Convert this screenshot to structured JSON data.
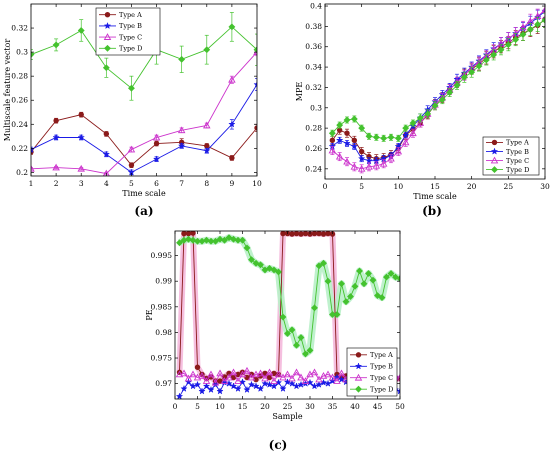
{
  "colors": {
    "A": "#8B1A1A",
    "B": "#1A1AE6",
    "C": "#CC33CC",
    "D": "#44C22E",
    "ribbon_pink": "#F4B8DC",
    "ribbon_green": "#B8F0C8",
    "axis": "#000000"
  },
  "chart_data": [
    {
      "id": "a",
      "type": "line",
      "caption": "(a)",
      "xlabel": "Time scale",
      "ylabel": "Multiscale feature vector",
      "xlim": [
        1,
        10
      ],
      "ylim": [
        0.197,
        0.34
      ],
      "xticks": [
        1,
        2,
        3,
        4,
        5,
        6,
        7,
        8,
        9,
        10
      ],
      "yticks": [
        0.2,
        0.22,
        0.24,
        0.26,
        0.28,
        0.3,
        0.32
      ],
      "ytick_labels": [
        "0.2",
        "0.22",
        "0.24",
        "0.26",
        "0.28",
        "0.3",
        "0.32"
      ],
      "legend_position": "top-left",
      "x": [
        1,
        2,
        3,
        4,
        5,
        6,
        7,
        8,
        9,
        10
      ],
      "series": [
        {
          "name": "Type A",
          "key": "A",
          "marker": "circle",
          "values": [
            0.217,
            0.243,
            0.248,
            0.232,
            0.206,
            0.224,
            0.225,
            0.222,
            0.212,
            0.237
          ],
          "errors": [
            0.002,
            0.002,
            0.002,
            0.002,
            0.002,
            0.002,
            0.003,
            0.002,
            0.002,
            0.003
          ]
        },
        {
          "name": "Type B",
          "key": "B",
          "marker": "star",
          "values": [
            0.219,
            0.229,
            0.229,
            0.215,
            0.2,
            0.211,
            0.222,
            0.218,
            0.24,
            0.273
          ],
          "errors": [
            0.002,
            0.002,
            0.002,
            0.002,
            0.002,
            0.002,
            0.002,
            0.002,
            0.004,
            0.005
          ]
        },
        {
          "name": "Type C",
          "key": "C",
          "marker": "triangle",
          "values": [
            0.203,
            0.204,
            0.203,
            0.199,
            0.219,
            0.229,
            0.235,
            0.239,
            0.277,
            0.3
          ],
          "errors": [
            0.001,
            0.001,
            0.001,
            0.001,
            0.002,
            0.002,
            0.002,
            0.002,
            0.003,
            0.003
          ]
        },
        {
          "name": "Type D",
          "key": "D",
          "marker": "diamond",
          "values": [
            0.298,
            0.306,
            0.318,
            0.287,
            0.27,
            0.302,
            0.294,
            0.302,
            0.321,
            0.302
          ],
          "errors": [
            0.004,
            0.005,
            0.009,
            0.008,
            0.01,
            0.012,
            0.011,
            0.012,
            0.012,
            0.013
          ]
        }
      ]
    },
    {
      "id": "b",
      "type": "line",
      "caption": "(b)",
      "xlabel": "Time scale",
      "ylabel": "MPE",
      "xlim": [
        0,
        30
      ],
      "ylim": [
        0.23,
        0.402
      ],
      "xticks": [
        0,
        5,
        10,
        15,
        20,
        25,
        30
      ],
      "yticks": [
        0.24,
        0.26,
        0.28,
        0.3,
        0.32,
        0.34,
        0.36,
        0.38,
        0.4
      ],
      "ytick_labels": [
        "0.24",
        "0.26",
        "0.28",
        "0.3",
        "0.32",
        "0.34",
        "0.36",
        "0.38",
        "0.4"
      ],
      "legend_position": "bottom-right",
      "x": [
        1,
        2,
        3,
        4,
        5,
        6,
        7,
        8,
        9,
        10,
        11,
        12,
        13,
        14,
        15,
        16,
        17,
        18,
        19,
        20,
        21,
        22,
        23,
        24,
        25,
        26,
        27,
        28,
        29,
        30
      ],
      "series": [
        {
          "name": "Type A",
          "key": "A",
          "marker": "circle",
          "values": [
            0.268,
            0.278,
            0.275,
            0.268,
            0.257,
            0.252,
            0.25,
            0.251,
            0.254,
            0.26,
            0.273,
            0.279,
            0.285,
            0.293,
            0.303,
            0.31,
            0.318,
            0.325,
            0.333,
            0.338,
            0.343,
            0.349,
            0.355,
            0.36,
            0.364,
            0.369,
            0.373,
            0.377,
            0.381,
            0.387
          ],
          "errors": [
            0.004,
            0.004,
            0.004,
            0.004,
            0.004,
            0.004,
            0.004,
            0.004,
            0.004,
            0.004,
            0.004,
            0.004,
            0.004,
            0.004,
            0.005,
            0.005,
            0.005,
            0.005,
            0.005,
            0.005,
            0.006,
            0.006,
            0.006,
            0.006,
            0.006,
            0.007,
            0.007,
            0.007,
            0.008,
            0.008
          ]
        },
        {
          "name": "Type B",
          "key": "B",
          "marker": "star",
          "values": [
            0.262,
            0.268,
            0.265,
            0.262,
            0.25,
            0.248,
            0.248,
            0.25,
            0.253,
            0.262,
            0.273,
            0.282,
            0.29,
            0.298,
            0.306,
            0.313,
            0.32,
            0.328,
            0.334,
            0.34,
            0.346,
            0.352,
            0.358,
            0.363,
            0.368,
            0.373,
            0.378,
            0.383,
            0.389,
            0.395
          ],
          "errors": [
            0.003,
            0.003,
            0.003,
            0.003,
            0.003,
            0.003,
            0.003,
            0.003,
            0.003,
            0.003,
            0.003,
            0.003,
            0.004,
            0.004,
            0.004,
            0.004,
            0.004,
            0.005,
            0.005,
            0.005,
            0.005,
            0.005,
            0.006,
            0.006,
            0.006,
            0.006,
            0.006,
            0.007,
            0.007,
            0.007
          ]
        },
        {
          "name": "Type C",
          "key": "C",
          "marker": "triangle",
          "values": [
            0.258,
            0.252,
            0.247,
            0.242,
            0.24,
            0.242,
            0.243,
            0.245,
            0.25,
            0.257,
            0.266,
            0.275,
            0.285,
            0.294,
            0.303,
            0.31,
            0.318,
            0.325,
            0.332,
            0.339,
            0.345,
            0.351,
            0.357,
            0.363,
            0.368,
            0.373,
            0.379,
            0.385,
            0.39,
            0.396
          ],
          "errors": [
            0.004,
            0.004,
            0.004,
            0.004,
            0.004,
            0.004,
            0.004,
            0.004,
            0.004,
            0.004,
            0.004,
            0.004,
            0.004,
            0.004,
            0.004,
            0.004,
            0.005,
            0.005,
            0.005,
            0.005,
            0.005,
            0.005,
            0.005,
            0.006,
            0.006,
            0.006,
            0.006,
            0.007,
            0.007,
            0.007
          ]
        },
        {
          "name": "Type D",
          "key": "D",
          "marker": "diamond",
          "values": [
            0.275,
            0.283,
            0.288,
            0.289,
            0.28,
            0.272,
            0.271,
            0.27,
            0.271,
            0.27,
            0.28,
            0.285,
            0.29,
            0.294,
            0.302,
            0.308,
            0.315,
            0.322,
            0.33,
            0.335,
            0.341,
            0.347,
            0.352,
            0.357,
            0.362,
            0.367,
            0.372,
            0.377,
            0.382,
            0.386
          ],
          "errors": [
            0.003,
            0.003,
            0.003,
            0.003,
            0.003,
            0.003,
            0.003,
            0.003,
            0.003,
            0.003,
            0.003,
            0.003,
            0.004,
            0.004,
            0.004,
            0.004,
            0.004,
            0.004,
            0.005,
            0.005,
            0.005,
            0.005,
            0.005,
            0.005,
            0.006,
            0.006,
            0.006,
            0.006,
            0.007,
            0.007
          ]
        }
      ]
    },
    {
      "id": "c",
      "type": "line",
      "caption": "(c)",
      "xlabel": "Sample",
      "ylabel": "PE",
      "xlim": [
        0,
        50
      ],
      "ylim": [
        0.967,
        0.9998
      ],
      "xticks": [
        0,
        5,
        10,
        15,
        20,
        25,
        30,
        35,
        40,
        45,
        50
      ],
      "yticks": [
        0.97,
        0.975,
        0.98,
        0.985,
        0.99,
        0.995
      ],
      "ytick_labels": [
        "0.97",
        "0.975",
        "0.98",
        "0.985",
        "0.99",
        "0.995"
      ],
      "legend_position": "bottom-right",
      "x": [
        1,
        2,
        3,
        4,
        5,
        6,
        7,
        8,
        9,
        10,
        11,
        12,
        13,
        14,
        15,
        16,
        17,
        18,
        19,
        20,
        21,
        22,
        23,
        24,
        25,
        26,
        27,
        28,
        29,
        30,
        31,
        32,
        33,
        34,
        35,
        36,
        37,
        38,
        39,
        40,
        41,
        42,
        43,
        44,
        45,
        46,
        47,
        48,
        49,
        50
      ],
      "series": [
        {
          "name": "Type A",
          "key": "A",
          "marker": "circle",
          "ribbon": "pink",
          "values": [
            0.9722,
            0.9993,
            0.9993,
            0.9994,
            0.9732,
            0.9718,
            0.971,
            0.9713,
            0.9705,
            0.9705,
            0.9713,
            0.972,
            0.9712,
            0.9718,
            0.9722,
            0.9712,
            0.9718,
            0.9708,
            0.9715,
            0.972,
            0.9712,
            0.972,
            0.9718,
            0.9993,
            0.9993,
            0.9992,
            0.9993,
            0.9992,
            0.9993,
            0.9992,
            0.9993,
            0.9993,
            0.9992,
            0.9993,
            0.9992,
            0.9718,
            0.9712,
            0.9715,
            0.9718,
            0.9712,
            0.971,
            0.9718,
            0.9713,
            0.971,
            0.9715,
            0.9705,
            0.9712,
            0.9718,
            0.9708,
            0.971
          ]
        },
        {
          "name": "Type B",
          "key": "B",
          "marker": "star",
          "values": [
            0.9675,
            0.969,
            0.9703,
            0.9695,
            0.9698,
            0.9685,
            0.9695,
            0.9688,
            0.9698,
            0.9685,
            0.9702,
            0.97,
            0.9695,
            0.969,
            0.9703,
            0.9688,
            0.9698,
            0.9695,
            0.969,
            0.97,
            0.9698,
            0.9695,
            0.9702,
            0.969,
            0.9703,
            0.97,
            0.9695,
            0.9698,
            0.97,
            0.9702,
            0.9695,
            0.9698,
            0.9702,
            0.97,
            0.9705,
            0.9712,
            0.9708,
            0.9703,
            0.97,
            0.9698,
            0.9695,
            0.97,
            0.9698,
            0.9695,
            0.969,
            0.9693,
            0.969,
            0.9693,
            0.9688,
            0.9685
          ]
        },
        {
          "name": "Type C",
          "key": "C",
          "marker": "triangle",
          "values": [
            0.9718,
            0.972,
            0.971,
            0.9718,
            0.9712,
            0.9715,
            0.9705,
            0.9718,
            0.9702,
            0.972,
            0.9705,
            0.9712,
            0.9722,
            0.9705,
            0.9718,
            0.9725,
            0.9712,
            0.9718,
            0.972,
            0.971,
            0.9722,
            0.9705,
            0.9718,
            0.9712,
            0.9718,
            0.971,
            0.9722,
            0.9712,
            0.9705,
            0.9718,
            0.9722,
            0.9708,
            0.9715,
            0.9718,
            0.9712,
            0.9705,
            0.972,
            0.9708,
            0.9712,
            0.9718,
            0.971,
            0.9715,
            0.9718,
            0.9705,
            0.9712,
            0.9708,
            0.9718,
            0.971,
            0.9715,
            0.9712
          ]
        },
        {
          "name": "Type D",
          "key": "D",
          "marker": "diamond",
          "ribbon": "green",
          "values": [
            0.9975,
            0.998,
            0.9982,
            0.998,
            0.9978,
            0.9978,
            0.998,
            0.9978,
            0.9978,
            0.9982,
            0.998,
            0.9985,
            0.9982,
            0.998,
            0.998,
            0.9965,
            0.9942,
            0.9935,
            0.9932,
            0.9922,
            0.9925,
            0.9922,
            0.9918,
            0.983,
            0.9798,
            0.9805,
            0.9775,
            0.979,
            0.9758,
            0.9765,
            0.9848,
            0.993,
            0.9935,
            0.99,
            0.9835,
            0.9835,
            0.9895,
            0.986,
            0.987,
            0.989,
            0.992,
            0.9895,
            0.9915,
            0.9902,
            0.9872,
            0.9868,
            0.9908,
            0.9915,
            0.9908,
            0.9905
          ]
        }
      ]
    }
  ]
}
